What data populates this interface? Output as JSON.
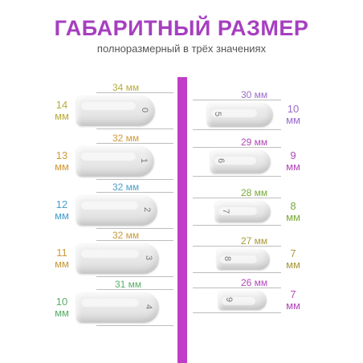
{
  "colors": {
    "title": "#a63fbf",
    "divider": "#c13cc7",
    "nail": "#e6e6e6"
  },
  "title": "ГАБАРИТНЫЙ РАЗМЕР",
  "subtitle": "полноразмерный в трёх значениях",
  "left": [
    {
      "size": "0",
      "length": "34 мм",
      "length_color": "#b8ad3a",
      "width_num": "14",
      "width_unit": "мм",
      "width_color": "#b8ad3a"
    },
    {
      "size": "1",
      "length": "32 мм",
      "length_color": "#d19a3a",
      "width_num": "13",
      "width_unit": "мм",
      "width_color": "#d19a3a"
    },
    {
      "size": "2",
      "length": "32 мм",
      "length_color": "#4aa0c9",
      "width_num": "12",
      "width_unit": "мм",
      "width_color": "#4aa0c9"
    },
    {
      "size": "3",
      "length": "32 мм",
      "length_color": "#c99a3a",
      "width_num": "11",
      "width_unit": "мм",
      "width_color": "#c99a3a"
    },
    {
      "size": "4",
      "length": "31 мм",
      "length_color": "#5cae6a",
      "width_num": "10",
      "width_unit": "мм",
      "width_color": "#5cae6a"
    }
  ],
  "right": [
    {
      "size": "5",
      "length": "30 мм",
      "length_color": "#9a6cc9",
      "width_num": "10",
      "width_unit": "мм",
      "width_color": "#9a6cc9"
    },
    {
      "size": "6",
      "length": "29 мм",
      "length_color": "#b04ab8",
      "width_num": "9",
      "width_unit": "мм",
      "width_color": "#b04ab8"
    },
    {
      "size": "7",
      "length": "28 мм",
      "length_color": "#7aaa3a",
      "width_num": "8",
      "width_unit": "мм",
      "width_color": "#7aaa3a"
    },
    {
      "size": "8",
      "length": "27 мм",
      "length_color": "#aa9a3a",
      "width_num": "7",
      "width_unit": "мм",
      "width_color": "#aa9a3a"
    },
    {
      "size": "9",
      "length": "26 мм",
      "length_color": "#b04ab8",
      "width_num": "7",
      "width_unit": "мм",
      "width_color": "#b04ab8"
    }
  ]
}
